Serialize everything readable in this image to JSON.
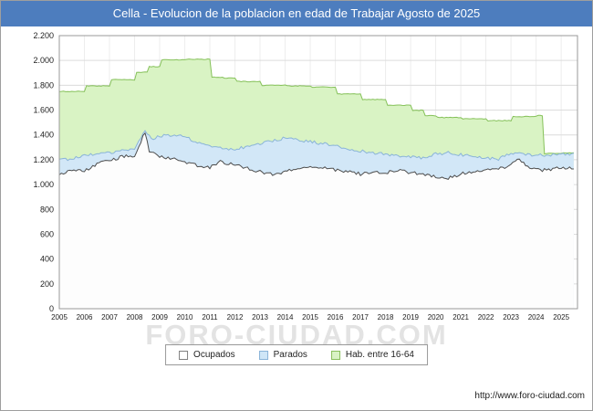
{
  "title_bar": {
    "title": "Cella - Evolucion de la poblacion en edad de Trabajar Agosto de 2025",
    "bg": "#4d7dbe"
  },
  "watermark": "FORO-CIUDAD.COM",
  "footer": {
    "url": "http://www.foro-ciudad.com"
  },
  "legend": {
    "items": [
      {
        "label": "Ocupados",
        "fill": "#ffffff",
        "border": "#808080"
      },
      {
        "label": "Parados",
        "fill": "#cfe6f7",
        "border": "#8ab4d8"
      },
      {
        "label": "Hab. entre 16-64",
        "fill": "#d9f3c4",
        "border": "#8abf5e"
      }
    ]
  },
  "chart_data": {
    "type": "area",
    "title": "Cella - Evolucion de la poblacion en edad de Trabajar Agosto de 2025",
    "xlabel": "",
    "ylabel": "",
    "ylim": [
      0,
      2200
    ],
    "x_range": [
      2005,
      2025.65
    ],
    "x_end_data": 2025.583,
    "grid": true,
    "legend_position": "bottom",
    "y_ticks": [
      "0",
      "200",
      "400",
      "600",
      "800",
      "1.000",
      "1.200",
      "1.400",
      "1.600",
      "1.800",
      "2.000",
      "2.200"
    ],
    "x_ticks": [
      "2005",
      "2006",
      "2007",
      "2008",
      "2009",
      "2010",
      "2011",
      "2012",
      "2013",
      "2014",
      "2015",
      "2016",
      "2017",
      "2018",
      "2019",
      "2020",
      "2021",
      "2022",
      "2023",
      "2024",
      "2025"
    ],
    "series": [
      {
        "name": "Hab. entre 16-64",
        "mode": "step",
        "jitter": 3,
        "fill": "#d9f3c4",
        "stroke": "#85c159",
        "anchors": [
          [
            2005,
            1750
          ],
          [
            2006,
            1795
          ],
          [
            2007,
            1845
          ],
          [
            2008,
            1905
          ],
          [
            2008.5,
            1950
          ],
          [
            2009,
            2005
          ],
          [
            2010,
            2010
          ],
          [
            2011,
            1865
          ],
          [
            2011.5,
            1858
          ],
          [
            2012,
            1830
          ],
          [
            2013,
            1800
          ],
          [
            2014,
            1795
          ],
          [
            2015,
            1785
          ],
          [
            2016,
            1730
          ],
          [
            2017,
            1685
          ],
          [
            2018,
            1640
          ],
          [
            2019,
            1598
          ],
          [
            2019.5,
            1555
          ],
          [
            2020,
            1540
          ],
          [
            2021,
            1530
          ],
          [
            2022,
            1515
          ],
          [
            2023,
            1548
          ],
          [
            2024,
            1555
          ],
          [
            2024.25,
            1250
          ],
          [
            2025,
            1255
          ]
        ]
      },
      {
        "name": "Parados",
        "mode": "linear",
        "jitter": 12,
        "fill": "#d2e7f7",
        "stroke": "#8ab4d8",
        "anchors": [
          [
            2005,
            1195
          ],
          [
            2005.5,
            1210
          ],
          [
            2006,
            1230
          ],
          [
            2006.5,
            1250
          ],
          [
            2007,
            1255
          ],
          [
            2007.5,
            1270
          ],
          [
            2008,
            1290
          ],
          [
            2008.4,
            1430
          ],
          [
            2008.7,
            1360
          ],
          [
            2009,
            1390
          ],
          [
            2009.5,
            1400
          ],
          [
            2010,
            1385
          ],
          [
            2010.5,
            1340
          ],
          [
            2011,
            1310
          ],
          [
            2011.5,
            1295
          ],
          [
            2012,
            1285
          ],
          [
            2012.5,
            1305
          ],
          [
            2013,
            1330
          ],
          [
            2013.5,
            1355
          ],
          [
            2014,
            1375
          ],
          [
            2014.5,
            1360
          ],
          [
            2015,
            1345
          ],
          [
            2015.5,
            1330
          ],
          [
            2016,
            1310
          ],
          [
            2016.5,
            1290
          ],
          [
            2017,
            1270
          ],
          [
            2017.5,
            1255
          ],
          [
            2018,
            1245
          ],
          [
            2018.5,
            1235
          ],
          [
            2019,
            1225
          ],
          [
            2019.5,
            1215
          ],
          [
            2020,
            1245
          ],
          [
            2020.5,
            1255
          ],
          [
            2021,
            1240
          ],
          [
            2021.5,
            1225
          ],
          [
            2022,
            1215
          ],
          [
            2022.5,
            1205
          ],
          [
            2023,
            1250
          ],
          [
            2023.5,
            1245
          ],
          [
            2024,
            1235
          ],
          [
            2024.5,
            1240
          ],
          [
            2025,
            1250
          ],
          [
            2025.6,
            1245
          ]
        ]
      },
      {
        "name": "Ocupados",
        "mode": "linear",
        "jitter": 14,
        "fill": "#fdfdfd",
        "stroke": "#4d4d4d",
        "anchors": [
          [
            2005,
            1075
          ],
          [
            2005.4,
            1120
          ],
          [
            2006,
            1105
          ],
          [
            2006.5,
            1170
          ],
          [
            2007,
            1195
          ],
          [
            2007.5,
            1225
          ],
          [
            2008,
            1235
          ],
          [
            2008.4,
            1420
          ],
          [
            2008.6,
            1260
          ],
          [
            2009,
            1225
          ],
          [
            2009.5,
            1205
          ],
          [
            2010,
            1185
          ],
          [
            2010.5,
            1155
          ],
          [
            2011,
            1140
          ],
          [
            2011.4,
            1185
          ],
          [
            2012,
            1155
          ],
          [
            2012.5,
            1135
          ],
          [
            2013,
            1105
          ],
          [
            2013.5,
            1085
          ],
          [
            2014,
            1105
          ],
          [
            2014.5,
            1125
          ],
          [
            2015,
            1150
          ],
          [
            2015.5,
            1140
          ],
          [
            2016,
            1120
          ],
          [
            2016.5,
            1100
          ],
          [
            2017,
            1085
          ],
          [
            2017.5,
            1100
          ],
          [
            2018,
            1095
          ],
          [
            2018.5,
            1110
          ],
          [
            2019,
            1100
          ],
          [
            2019.5,
            1085
          ],
          [
            2020,
            1060
          ],
          [
            2020.5,
            1050
          ],
          [
            2021,
            1085
          ],
          [
            2021.5,
            1100
          ],
          [
            2022,
            1110
          ],
          [
            2022.5,
            1130
          ],
          [
            2023,
            1155
          ],
          [
            2023.3,
            1215
          ],
          [
            2023.7,
            1130
          ],
          [
            2024,
            1120
          ],
          [
            2024.5,
            1115
          ],
          [
            2025,
            1135
          ],
          [
            2025.58,
            1130
          ]
        ]
      }
    ],
    "colors": {
      "grid": "#dcdcdc",
      "grid_minor": "#ededed",
      "plot_border": "#999999",
      "tick_text": "#222222"
    }
  }
}
